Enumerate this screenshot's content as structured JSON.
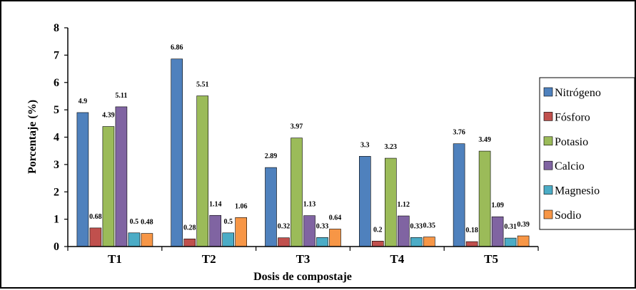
{
  "chart_data": {
    "type": "bar",
    "categories": [
      "T1",
      "T2",
      "T3",
      "T4",
      "T5"
    ],
    "series": [
      {
        "name": "Nitrógeno",
        "color": "#4F81BD",
        "values": [
          4.9,
          6.86,
          2.89,
          3.3,
          3.76
        ]
      },
      {
        "name": "Fósforo",
        "color": "#C0504D",
        "values": [
          0.68,
          0.28,
          0.32,
          0.2,
          0.18
        ]
      },
      {
        "name": "Potasio",
        "color": "#9BBB59",
        "values": [
          4.39,
          5.51,
          3.97,
          3.23,
          3.49
        ]
      },
      {
        "name": "Calcio",
        "color": "#8064A2",
        "values": [
          5.11,
          1.14,
          1.13,
          1.12,
          1.09
        ]
      },
      {
        "name": "Magnesio",
        "color": "#4BACC6",
        "values": [
          0.5,
          0.5,
          0.33,
          0.33,
          0.31
        ]
      },
      {
        "name": "Sodio",
        "color": "#F79646",
        "values": [
          0.48,
          1.06,
          0.64,
          0.35,
          0.39
        ]
      }
    ],
    "title": "",
    "xlabel": "Dosis de compostaje",
    "ylabel": "Porcentaje (%)",
    "ylim": [
      0,
      8
    ],
    "yticks": [
      0,
      1,
      2,
      3,
      4,
      5,
      6,
      7,
      8
    ],
    "grid": false,
    "legend": "right"
  }
}
